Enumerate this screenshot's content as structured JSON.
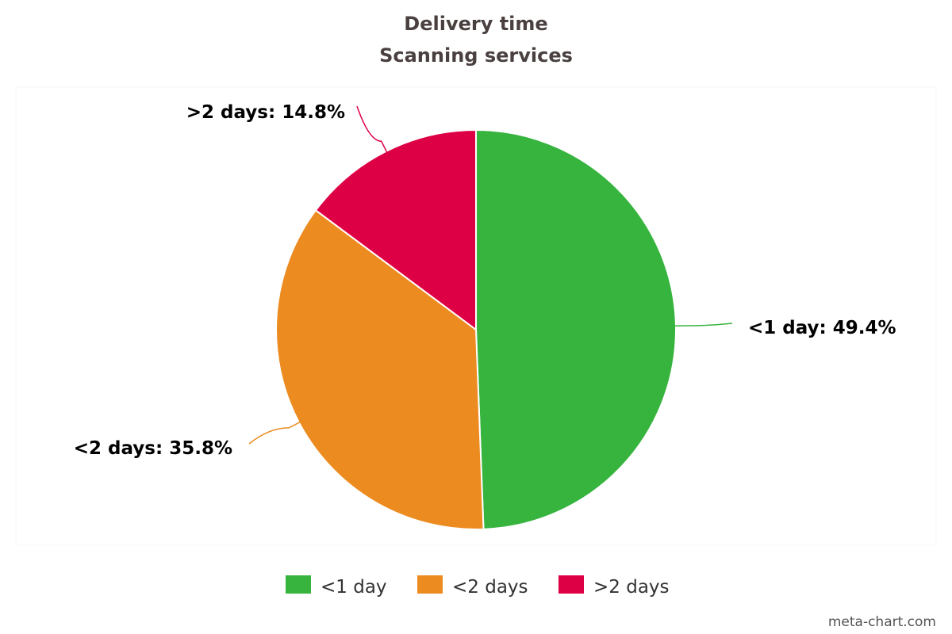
{
  "chart_data": {
    "type": "pie",
    "title": "Delivery time",
    "subtitle": "Scanning services",
    "categories": [
      "<1 day",
      "<2 days",
      ">2 days"
    ],
    "values": [
      49.4,
      35.8,
      14.8
    ],
    "unit": "%",
    "colors": [
      "#36b43e",
      "#ec8b1f",
      "#de0045"
    ],
    "data_labels": [
      "<1 day: 49.4%",
      "<2 days: 35.8%",
      ">2 days: 14.8%"
    ],
    "legend": {
      "position": "bottom",
      "entries": [
        "<1 day",
        "<2 days",
        ">2 days"
      ]
    },
    "start_angle": "12 o'clock",
    "direction": "clockwise"
  },
  "credit": "meta-chart.com"
}
